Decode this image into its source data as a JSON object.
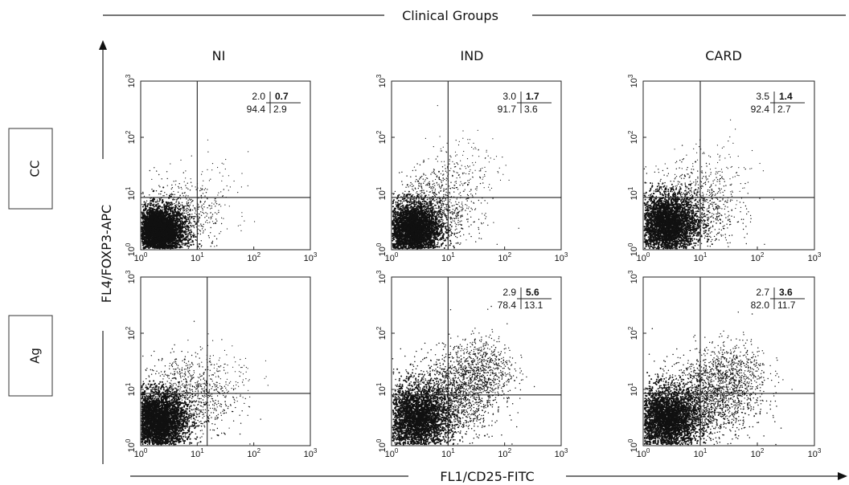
{
  "figure": {
    "title": "Clinical Groups",
    "x_axis_label": "FL1/CD25-FITC",
    "y_axis_label": "FL4/FOXP3-APC",
    "columns": [
      "NI",
      "IND",
      "CARD"
    ],
    "rows": [
      "CC",
      "Ag"
    ]
  },
  "chart_data": [
    {
      "type": "scatter",
      "row": "CC",
      "group": "NI",
      "xscale": "log",
      "yscale": "log",
      "xlim": [
        1,
        1000
      ],
      "ylim": [
        1,
        1000
      ],
      "quadrants": {
        "ul": "2.0",
        "ur": "0.7",
        "ll": "94.4",
        "lr": "2.9"
      }
    },
    {
      "type": "scatter",
      "row": "CC",
      "group": "IND",
      "xscale": "log",
      "yscale": "log",
      "xlim": [
        1,
        1000
      ],
      "ylim": [
        1,
        1000
      ],
      "quadrants": {
        "ul": "3.0",
        "ur": "1.7",
        "ll": "91.7",
        "lr": "3.6"
      }
    },
    {
      "type": "scatter",
      "row": "CC",
      "group": "CARD",
      "xscale": "log",
      "yscale": "log",
      "xlim": [
        1,
        1000
      ],
      "ylim": [
        1,
        1000
      ],
      "quadrants": {
        "ul": "3.5",
        "ur": "1.4",
        "ll": "92.4",
        "lr": "2.7"
      }
    },
    {
      "type": "scatter",
      "row": "Ag",
      "group": "NI",
      "xscale": "log",
      "yscale": "log",
      "xlim": [
        1,
        1000
      ],
      "ylim": [
        1,
        1000
      ],
      "quadrants": null
    },
    {
      "type": "scatter",
      "row": "Ag",
      "group": "IND",
      "xscale": "log",
      "yscale": "log",
      "xlim": [
        1,
        1000
      ],
      "ylim": [
        1,
        1000
      ],
      "quadrants": {
        "ul": "2.9",
        "ur": "5.6",
        "ll": "78.4",
        "lr": "13.1"
      }
    },
    {
      "type": "scatter",
      "row": "Ag",
      "group": "CARD",
      "xscale": "log",
      "yscale": "log",
      "xlim": [
        1,
        1000
      ],
      "ylim": [
        1,
        1000
      ],
      "quadrants": {
        "ul": "2.7",
        "ur": "3.6",
        "ll": "82.0",
        "lr": "11.7"
      }
    }
  ],
  "quadrant_gates": [
    {
      "x": 10,
      "y": 8.5
    },
    {
      "x": 10,
      "y": 8.5
    },
    {
      "x": 10,
      "y": 8.5
    },
    {
      "x": 15,
      "y": 8.5
    },
    {
      "x": 10,
      "y": 8.0
    },
    {
      "x": 10,
      "y": 8.5
    }
  ],
  "ticks": [
    {
      "base": "10",
      "exp": "0",
      "value": 1
    },
    {
      "base": "10",
      "exp": "1",
      "value": 10
    },
    {
      "base": "10",
      "exp": "2",
      "value": 100
    },
    {
      "base": "10",
      "exp": "3",
      "value": 1000
    }
  ]
}
